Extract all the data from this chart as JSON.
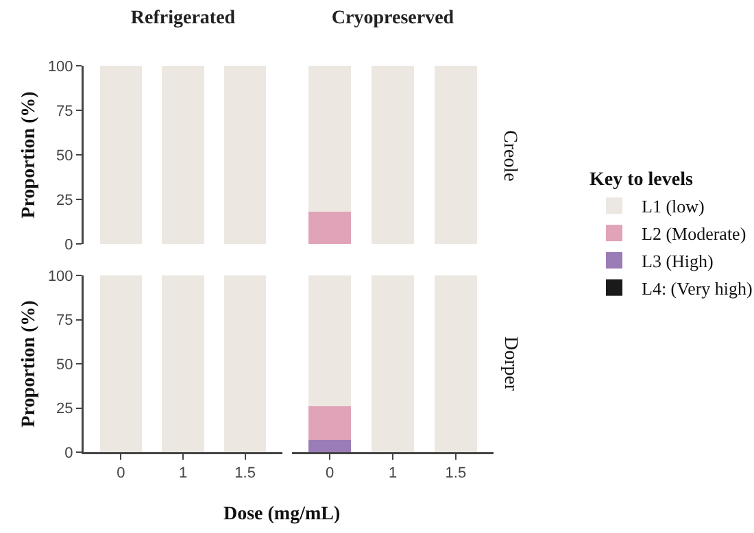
{
  "chart_data": [
    {
      "type": "bar",
      "stacked": true,
      "title": "Refrigerated",
      "ylabel": "Proportion (%)",
      "categories": [
        "0",
        "1",
        "1.5"
      ],
      "ylim": [
        0,
        100
      ],
      "yticks": [
        0,
        25,
        50,
        75,
        100
      ],
      "tick_labels": "y",
      "grid": false,
      "legend": false,
      "series": [
        {
          "color": "#1a1a1a",
          "values": [
            0,
            0,
            0
          ]
        },
        {
          "color": "#9a7cb6",
          "values": [
            0,
            0,
            0
          ]
        },
        {
          "color": "#e0a3b8",
          "values": [
            0,
            0,
            0
          ]
        },
        {
          "color": "#ece8e1",
          "values": [
            100,
            100,
            100
          ]
        }
      ]
    },
    {
      "type": "bar",
      "stacked": true,
      "title": "Cryopreserved",
      "annotations": [
        "Creole"
      ],
      "legend_title": "Key to levels",
      "categories": [
        "0",
        "1",
        "1.5"
      ],
      "ylim": [
        0,
        100
      ],
      "yticks": [
        0,
        25,
        50,
        75,
        100
      ],
      "tick_labels": false,
      "grid": false,
      "legend": "right",
      "series": [
        {
          "name": "L4: (Very high)",
          "color": "#1a1a1a",
          "values": [
            0,
            0,
            0
          ]
        },
        {
          "name": "L3 (High)",
          "color": "#9a7cb6",
          "values": [
            0,
            0,
            0
          ]
        },
        {
          "name": "L2 (Moderate)",
          "color": "#e0a3b8",
          "values": [
            18,
            0,
            0
          ]
        },
        {
          "name": "L1 (low)",
          "color": "#ece8e1",
          "values": [
            82,
            100,
            100
          ]
        }
      ]
    },
    {
      "type": "bar",
      "stacked": true,
      "ylabel": "Proportion (%)",
      "categories": [
        "0",
        "1",
        "1.5"
      ],
      "ylim": [
        0,
        100
      ],
      "yticks": [
        0,
        25,
        50,
        75,
        100
      ],
      "grid": false,
      "legend": false,
      "series": [
        {
          "color": "#1a1a1a",
          "values": [
            0,
            0,
            0
          ]
        },
        {
          "color": "#9a7cb6",
          "values": [
            0,
            0,
            0
          ]
        },
        {
          "color": "#e0a3b8",
          "values": [
            0,
            0,
            0
          ]
        },
        {
          "color": "#ece8e1",
          "values": [
            100,
            100,
            100
          ]
        }
      ]
    },
    {
      "type": "bar",
      "stacked": true,
      "xlabel": "Dose (mg/mL)",
      "annotations": [
        "Dorper"
      ],
      "categories": [
        "0",
        "1",
        "1.5"
      ],
      "ylim": [
        0,
        100
      ],
      "yticks": [
        0,
        25,
        50,
        75,
        100
      ],
      "tick_labels": "x",
      "grid": false,
      "legend": false,
      "series": [
        {
          "color": "#1a1a1a",
          "values": [
            0,
            0,
            0
          ]
        },
        {
          "color": "#9a7cb6",
          "values": [
            7,
            0,
            0
          ]
        },
        {
          "color": "#e0a3b8",
          "values": [
            19,
            0,
            0
          ]
        },
        {
          "color": "#ece8e1",
          "values": [
            74,
            100,
            100
          ]
        }
      ]
    }
  ]
}
